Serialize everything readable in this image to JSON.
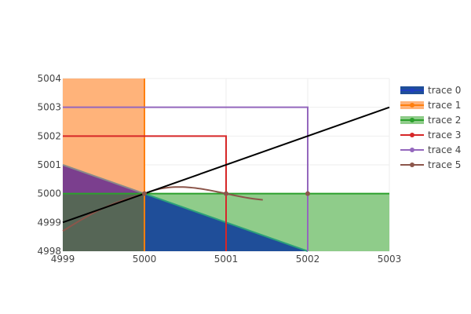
{
  "chart_data": {
    "type": "line",
    "title": "",
    "xlabel": "",
    "ylabel": "",
    "xlim": [
      4999,
      5003
    ],
    "ylim": [
      4998,
      5004
    ],
    "x_ticks": [
      "4999",
      "5000",
      "5001",
      "5002",
      "5003"
    ],
    "y_ticks": [
      "4998",
      "4999",
      "5000",
      "5001",
      "5002",
      "5003",
      "5004"
    ],
    "grid": true,
    "legend_position": "right",
    "series": [
      {
        "name": "trace 0",
        "color": "#1f3fbf",
        "fill": "#1f4e99",
        "x": [
          5000,
          5002
        ],
        "y": [
          5000,
          4998
        ]
      },
      {
        "name": "trace 1",
        "color": "#ff7f0e",
        "fill": "#ffb37a",
        "x": [
          4999,
          5000,
          5000
        ],
        "y": [
          5004,
          5004,
          4998
        ]
      },
      {
        "name": "trace 2",
        "color": "#2ca02c",
        "fill": "#8fcc8a",
        "x": [
          5000,
          5003
        ],
        "y": [
          5000,
          5000
        ]
      },
      {
        "name": "trace 3",
        "color": "#d62728",
        "x": [
          4999,
          5001,
          5001
        ],
        "y": [
          5002,
          5002,
          4998
        ]
      },
      {
        "name": "trace 4",
        "color": "#9467bd",
        "x": [
          4999,
          5002,
          5002
        ],
        "y": [
          5003,
          5003,
          4998
        ]
      },
      {
        "name": "trace 5",
        "color": "#8c564b",
        "x": [
          4999,
          5000,
          5001,
          5002
        ],
        "y": [
          4998.7,
          5000,
          5000,
          5000
        ]
      }
    ],
    "reference_line": {
      "color": "#000000",
      "x": [
        4999,
        5003
      ],
      "y": [
        4999,
        5003
      ]
    }
  }
}
